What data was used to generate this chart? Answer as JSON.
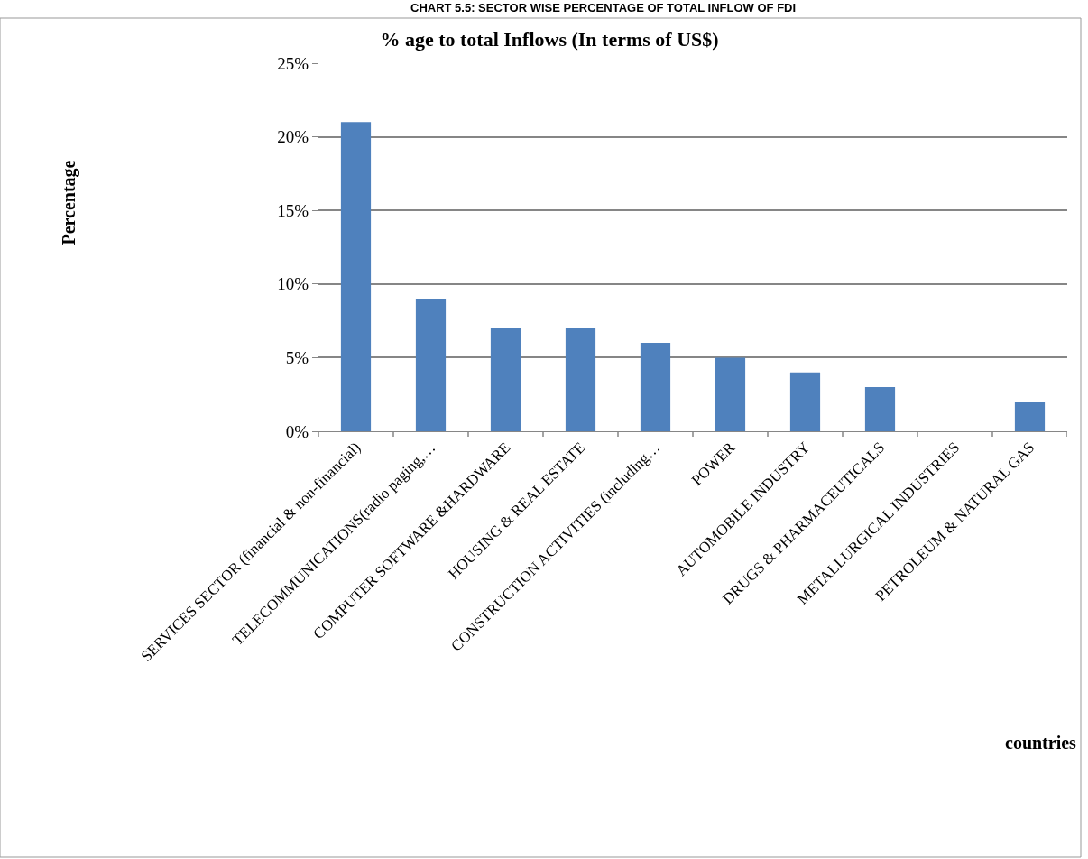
{
  "chart_data": {
    "type": "bar",
    "title": "% age to total Inflows (In terms of US$)",
    "annotations": [
      "CHART 5.5: SECTOR WISE PERCENTAGE OF TOTAL INFLOW OF FDI"
    ],
    "xlabel": "countries",
    "ylabel": "Percentage",
    "categories": [
      "SERVICES SECTOR (financial & non-financial)",
      "TELECOMMUNICATIONS(radio paging,…",
      "COMPUTER SOFTWARE &HARDWARE",
      "HOUSING & REAL ESTATE",
      "CONSTRUCTION ACTIVITIES (including…",
      "POWER",
      "AUTOMOBILE INDUSTRY",
      "DRUGS & PHARMACEUTICALS",
      "METALLURGICAL INDUSTRIES",
      "PETROLEUM & NATURAL GAS"
    ],
    "values": [
      21,
      9,
      7,
      7,
      6,
      5,
      4,
      3,
      0,
      2
    ],
    "color": "#4f81bd",
    "ylim": [
      0,
      25
    ],
    "yticks": [
      {
        "value": 0,
        "label": "0%"
      },
      {
        "value": 5,
        "label": "5%"
      },
      {
        "value": 10,
        "label": "10%"
      },
      {
        "value": 15,
        "label": "15%"
      },
      {
        "value": 20,
        "label": "20%"
      },
      {
        "value": 25,
        "label": "25%"
      }
    ],
    "grid": "y"
  }
}
